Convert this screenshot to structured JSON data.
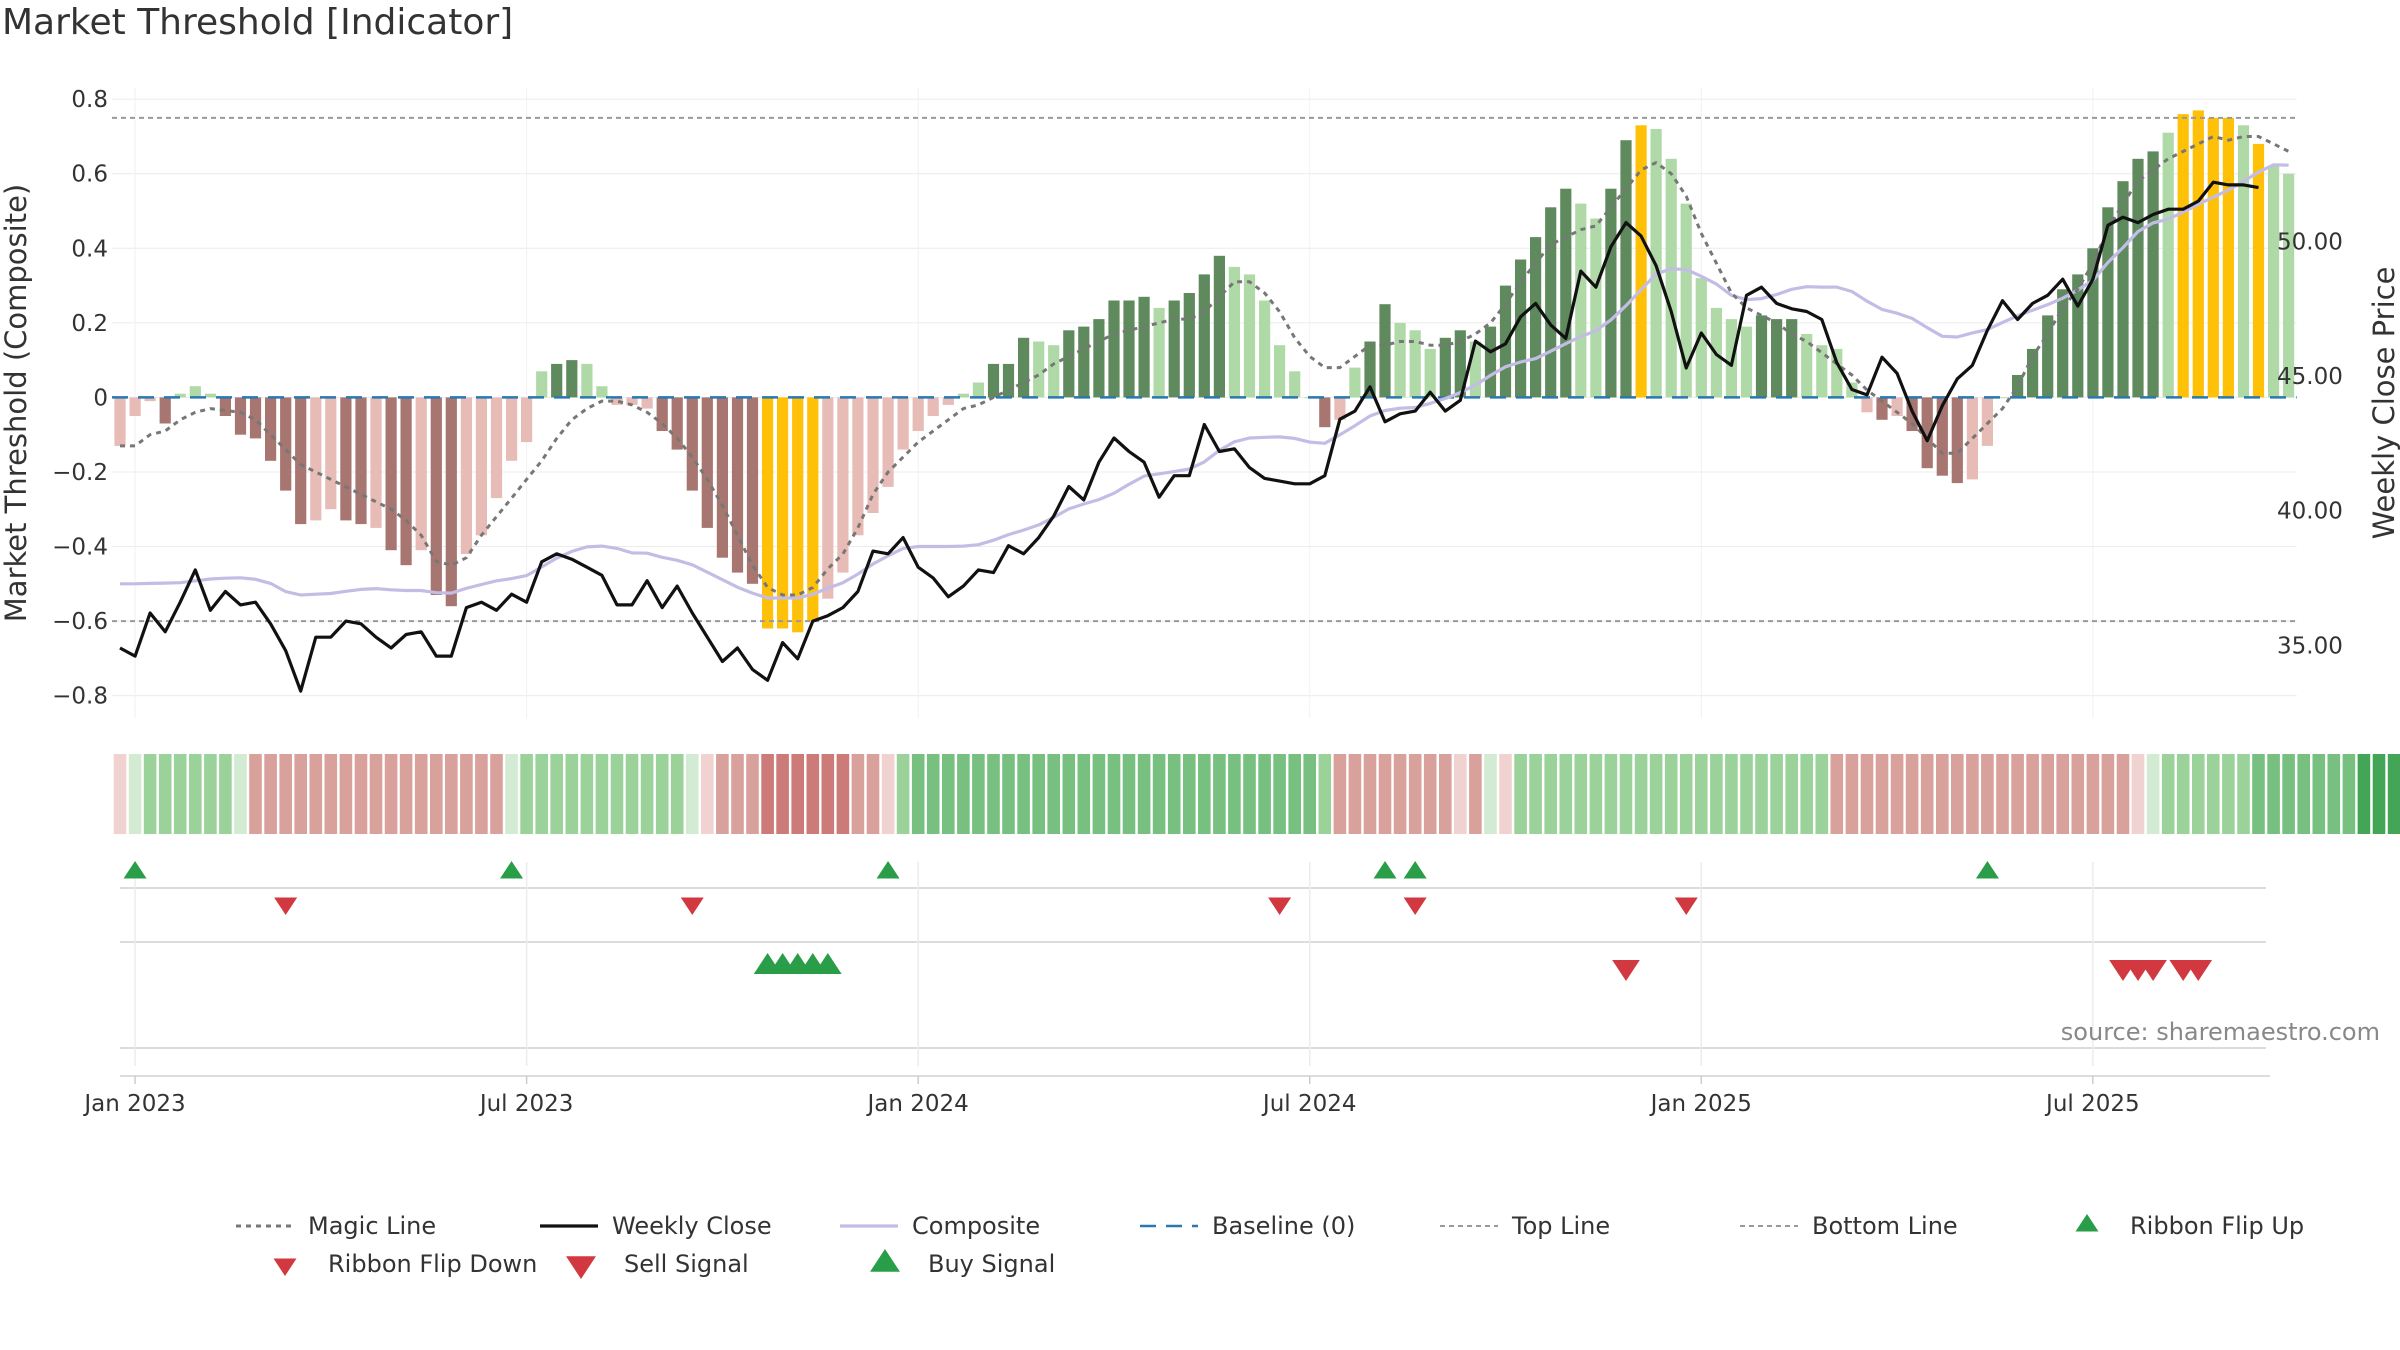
{
  "title": "Market Threshold [Indicator]",
  "source": "source: sharemaestro.com",
  "chart_data": {
    "type": "bar",
    "y_left_label": "Market Threshold (Composite)",
    "y_right_label": "Weekly Close Price",
    "y_left_ticks": [
      {
        "v": 0.8,
        "label": "0.8"
      },
      {
        "v": 0.6,
        "label": "0.6"
      },
      {
        "v": 0.4,
        "label": "0.4"
      },
      {
        "v": 0.2,
        "label": "0.2"
      },
      {
        "v": 0,
        "label": "0"
      },
      {
        "v": -0.2,
        "label": "−0.2"
      },
      {
        "v": -0.4,
        "label": "−0.4"
      },
      {
        "v": -0.6,
        "label": "−0.6"
      },
      {
        "v": -0.8,
        "label": "−0.8"
      }
    ],
    "y_left_range": [
      -0.86,
      0.83
    ],
    "y_right_ticks": [
      {
        "v": 50,
        "label": "50.00"
      },
      {
        "v": 45,
        "label": "45.00"
      },
      {
        "v": 40,
        "label": "40.00"
      },
      {
        "v": 35,
        "label": "35.00"
      }
    ],
    "y_right_range": [
      32.3,
      55.7
    ],
    "x_ticks": [
      {
        "label": "Jan 2023",
        "week": 1
      },
      {
        "label": "Jul 2023",
        "week": 27
      },
      {
        "label": "Jan 2024",
        "week": 53
      },
      {
        "label": "Jul 2024",
        "week": 79
      },
      {
        "label": "Jan 2025",
        "week": 105
      },
      {
        "label": "Jul 2025",
        "week": 131
      }
    ],
    "week_count": 145,
    "top_line": 0.75,
    "bottom_line": -0.6,
    "baseline": 0,
    "colors": {
      "bull_strong": "#5e8a5e",
      "bull_light": "#b0d9a8",
      "bear_strong": "#a87670",
      "bear_light": "#e8bcb6",
      "extreme": "#ffc107",
      "weekly_close": "#111111",
      "composite": "#c3bde6",
      "magic": "#777777",
      "baseline": "#2a78b0",
      "threshold": "#999999",
      "signal_up": "#2a9d48",
      "signal_down": "#d2383f"
    },
    "bar_values": [
      -0.13,
      -0.05,
      -0.01,
      -0.07,
      0.01,
      0.03,
      0.01,
      -0.05,
      -0.1,
      -0.11,
      -0.17,
      -0.25,
      -0.34,
      -0.33,
      -0.3,
      -0.33,
      -0.34,
      -0.35,
      -0.41,
      -0.45,
      -0.41,
      -0.53,
      -0.56,
      -0.42,
      -0.37,
      -0.27,
      -0.17,
      -0.12,
      0.07,
      0.09,
      0.1,
      0.09,
      0.03,
      -0.02,
      -0.02,
      -0.03,
      -0.09,
      -0.14,
      -0.25,
      -0.35,
      -0.43,
      -0.47,
      -0.5,
      -0.62,
      -0.62,
      -0.63,
      -0.6,
      -0.54,
      -0.47,
      -0.37,
      -0.31,
      -0.24,
      -0.14,
      -0.09,
      -0.05,
      -0.02,
      0.01,
      0.04,
      0.09,
      0.09,
      0.16,
      0.15,
      0.14,
      0.18,
      0.19,
      0.21,
      0.26,
      0.26,
      0.27,
      0.24,
      0.26,
      0.28,
      0.33,
      0.38,
      0.35,
      0.33,
      0.26,
      0.14,
      0.07,
      0,
      -0.08,
      -0.06,
      0.08,
      0.15,
      0.25,
      0.2,
      0.18,
      0.13,
      0.16,
      0.18,
      0.15,
      0.19,
      0.3,
      0.37,
      0.43,
      0.51,
      0.56,
      0.52,
      0.48,
      0.56,
      0.69,
      0.73,
      0.72,
      0.64,
      0.52,
      0.32,
      0.24,
      0.21,
      0.19,
      0.22,
      0.21,
      0.21,
      0.17,
      0.14,
      0.13,
      0.04,
      -0.04,
      -0.06,
      -0.05,
      -0.09,
      -0.19,
      -0.21,
      -0.23,
      -0.22,
      -0.13,
      0,
      0.06,
      0.13,
      0.22,
      0.29,
      0.33,
      0.4,
      0.51,
      0.58,
      0.64,
      0.66,
      0.71,
      0.76,
      0.77,
      0.75,
      0.75,
      0.73,
      0.68,
      0.62,
      0.6
    ],
    "bar_kinds": [
      "BL",
      "BL",
      "BL",
      "BS",
      "GL",
      "GL",
      "GL",
      "BS",
      "BS",
      "BS",
      "BS",
      "BS",
      "BS",
      "BL",
      "BL",
      "BS",
      "BS",
      "BL",
      "BS",
      "BS",
      "BL",
      "BS",
      "BS",
      "BL",
      "BL",
      "BL",
      "BL",
      "BL",
      "GL",
      "GS",
      "GS",
      "GL",
      "GL",
      "BL",
      "BL",
      "BL",
      "BS",
      "BS",
      "BS",
      "BS",
      "BS",
      "BS",
      "BS",
      "Y",
      "Y",
      "Y",
      "Y",
      "BL",
      "BL",
      "BL",
      "BL",
      "BL",
      "BL",
      "BL",
      "BL",
      "BL",
      "GL",
      "GL",
      "GS",
      "GS",
      "GS",
      "GL",
      "GL",
      "GS",
      "GS",
      "GS",
      "GS",
      "GS",
      "GS",
      "GL",
      "GS",
      "GS",
      "GS",
      "GS",
      "GL",
      "GL",
      "GL",
      "GL",
      "GL",
      "GL",
      "BS",
      "BL",
      "GL",
      "GS",
      "GS",
      "GL",
      "GL",
      "GL",
      "GS",
      "GS",
      "GL",
      "GS",
      "GS",
      "GS",
      "GS",
      "GS",
      "GS",
      "GL",
      "GL",
      "GS",
      "GS",
      "Y",
      "GL",
      "GL",
      "GL",
      "GL",
      "GL",
      "GL",
      "GL",
      "GS",
      "GS",
      "GS",
      "GL",
      "GL",
      "GL",
      "GL",
      "BL",
      "BS",
      "BL",
      "BS",
      "BS",
      "BS",
      "BS",
      "BL",
      "BL",
      "GL",
      "GS",
      "GS",
      "GS",
      "GS",
      "GS",
      "GS",
      "GS",
      "GS",
      "GS",
      "GS",
      "GL",
      "Y",
      "Y",
      "Y",
      "Y",
      "GL",
      "Y",
      "GL",
      "GL",
      "GL"
    ],
    "weekly_close": [
      34.9,
      34.6,
      36.2,
      35.5,
      36.6,
      37.8,
      36.3,
      37,
      36.5,
      36.6,
      35.8,
      34.8,
      33.3,
      35.3,
      35.3,
      35.9,
      35.8,
      35.3,
      34.9,
      35.4,
      35.5,
      34.6,
      34.6,
      36.4,
      36.6,
      36.3,
      36.9,
      36.6,
      38.1,
      38.4,
      38.2,
      37.9,
      37.6,
      36.5,
      36.5,
      37.4,
      36.4,
      37.2,
      36.2,
      35.3,
      34.4,
      34.9,
      34.1,
      33.7,
      35.1,
      34.5,
      35.9,
      36.1,
      36.4,
      37,
      38.5,
      38.4,
      39,
      37.9,
      37.5,
      36.8,
      37.2,
      37.8,
      37.7,
      38.7,
      38.4,
      39,
      39.8,
      40.9,
      40.4,
      41.8,
      42.7,
      42.2,
      41.8,
      40.5,
      41.3,
      41.3,
      43.2,
      42.2,
      42.3,
      41.6,
      41.2,
      41.1,
      41,
      41,
      41.3,
      43.4,
      43.7,
      44.6,
      43.3,
      43.6,
      43.7,
      44.4,
      43.7,
      44.1,
      46.3,
      45.9,
      46.2,
      47.2,
      47.7,
      46.9,
      46.4,
      48.9,
      48.3,
      49.8,
      50.7,
      50.2,
      49.1,
      47.4,
      45.3,
      46.6,
      45.8,
      45.4,
      48,
      48.3,
      47.7,
      47.5,
      47.4,
      47.1,
      45.5,
      44.5,
      44.3,
      45.7,
      45.1,
      43.7,
      42.6,
      43.9,
      44.9,
      45.4,
      46.7,
      47.8,
      47.1,
      47.7,
      48,
      48.6,
      47.6,
      48.6,
      50.6,
      50.9,
      50.7,
      51,
      51.2,
      51.2,
      51.5,
      52.2,
      52.1,
      52.1,
      52
    ],
    "composite": [
      -0.5,
      -0.5,
      -0.499,
      -0.498,
      -0.497,
      -0.492,
      -0.487,
      -0.485,
      -0.484,
      -0.488,
      -0.499,
      -0.521,
      -0.53,
      -0.528,
      -0.526,
      -0.52,
      -0.515,
      -0.513,
      -0.516,
      -0.518,
      -0.518,
      -0.524,
      -0.525,
      -0.512,
      -0.502,
      -0.492,
      -0.486,
      -0.478,
      -0.455,
      -0.431,
      -0.413,
      -0.401,
      -0.399,
      -0.405,
      -0.417,
      -0.418,
      -0.429,
      -0.437,
      -0.449,
      -0.469,
      -0.489,
      -0.509,
      -0.525,
      -0.538,
      -0.538,
      -0.538,
      -0.528,
      -0.512,
      -0.497,
      -0.474,
      -0.447,
      -0.425,
      -0.405,
      -0.4,
      -0.4,
      -0.4,
      -0.399,
      -0.395,
      -0.383,
      -0.368,
      -0.356,
      -0.342,
      -0.322,
      -0.299,
      -0.286,
      -0.274,
      -0.257,
      -0.233,
      -0.211,
      -0.205,
      -0.199,
      -0.192,
      -0.173,
      -0.142,
      -0.119,
      -0.109,
      -0.107,
      -0.106,
      -0.11,
      -0.12,
      -0.123,
      -0.1,
      -0.076,
      -0.05,
      -0.035,
      -0.029,
      -0.027,
      -0.016,
      -0.003,
      0.013,
      0.033,
      0.059,
      0.082,
      0.095,
      0.104,
      0.124,
      0.144,
      0.163,
      0.179,
      0.208,
      0.246,
      0.289,
      0.331,
      0.345,
      0.343,
      0.325,
      0.304,
      0.274,
      0.262,
      0.265,
      0.276,
      0.29,
      0.297,
      0.296,
      0.296,
      0.284,
      0.258,
      0.236,
      0.226,
      0.212,
      0.187,
      0.164,
      0.162,
      0.173,
      0.182,
      0.201,
      0.219,
      0.234,
      0.249,
      0.266,
      0.288,
      0.314,
      0.362,
      0.402,
      0.445,
      0.468,
      0.478,
      0.497,
      0.518,
      0.537,
      0.556,
      0.58,
      0.604,
      0.624,
      0.623
    ],
    "magic_line": [
      -0.13,
      -0.13,
      -0.1,
      -0.09,
      -0.06,
      -0.04,
      -0.03,
      -0.035,
      -0.04,
      -0.06,
      -0.1,
      -0.14,
      -0.18,
      -0.2,
      -0.22,
      -0.24,
      -0.26,
      -0.28,
      -0.3,
      -0.33,
      -0.37,
      -0.44,
      -0.45,
      -0.43,
      -0.37,
      -0.32,
      -0.27,
      -0.22,
      -0.17,
      -0.11,
      -0.06,
      -0.03,
      -0.01,
      -0.01,
      -0.02,
      -0.04,
      -0.07,
      -0.11,
      -0.16,
      -0.22,
      -0.29,
      -0.37,
      -0.45,
      -0.51,
      -0.53,
      -0.53,
      -0.51,
      -0.46,
      -0.42,
      -0.35,
      -0.26,
      -0.2,
      -0.16,
      -0.12,
      -0.09,
      -0.06,
      -0.03,
      -0.02,
      0,
      0.02,
      0.04,
      0.06,
      0.09,
      0.11,
      0.13,
      0.15,
      0.17,
      0.18,
      0.19,
      0.2,
      0.21,
      0.21,
      0.23,
      0.27,
      0.31,
      0.31,
      0.28,
      0.23,
      0.16,
      0.11,
      0.08,
      0.08,
      0.11,
      0.14,
      0.14,
      0.15,
      0.15,
      0.14,
      0.14,
      0.15,
      0.17,
      0.2,
      0.25,
      0.31,
      0.36,
      0.41,
      0.43,
      0.45,
      0.46,
      0.51,
      0.56,
      0.61,
      0.63,
      0.6,
      0.54,
      0.44,
      0.36,
      0.28,
      0.24,
      0.22,
      0.2,
      0.17,
      0.15,
      0.12,
      0.09,
      0.06,
      0.02,
      -0.01,
      -0.04,
      -0.07,
      -0.11,
      -0.15,
      -0.15,
      -0.11,
      -0.07,
      -0.03,
      0.03,
      0.11,
      0.17,
      0.24,
      0.29,
      0.36,
      0.45,
      0.52,
      0.58,
      0.61,
      0.64,
      0.66,
      0.68,
      0.7,
      0.69,
      0.7,
      0.7,
      0.68,
      0.66
    ],
    "ribbon_levels": [
      -1,
      1,
      2,
      2,
      2,
      2,
      2,
      2,
      1,
      -2,
      -2,
      -2,
      -2,
      -2,
      -2,
      -2,
      -2,
      -2,
      -2,
      -2,
      -2,
      -2,
      -2,
      -2,
      -2,
      -2,
      1,
      2,
      2,
      2,
      2,
      2,
      2,
      2,
      2,
      2,
      2,
      2,
      1,
      -1,
      -2,
      -2,
      -2,
      -3,
      -3,
      -3,
      -3,
      -3,
      -3,
      -2,
      -2,
      -1,
      2,
      3,
      3,
      3,
      3,
      3,
      3,
      3,
      3,
      3,
      3,
      3,
      3,
      3,
      3,
      3,
      3,
      3,
      3,
      3,
      3,
      3,
      3,
      3,
      3,
      3,
      3,
      3,
      2,
      -2,
      -2,
      -2,
      -2,
      -2,
      -2,
      -2,
      -2,
      -1,
      -2,
      1,
      -1,
      2,
      2,
      2,
      2,
      2,
      2,
      2,
      2,
      2,
      2,
      2,
      2,
      2,
      2,
      2,
      2,
      2,
      2,
      2,
      2,
      2,
      -2,
      -2,
      -2,
      -2,
      -2,
      -2,
      -2,
      -2,
      -2,
      -2,
      -2,
      -2,
      -2,
      -2,
      -2,
      -2,
      -2,
      -2,
      -2,
      -2,
      -1,
      1,
      2,
      2,
      2,
      2,
      2,
      2,
      3,
      3,
      3,
      3,
      3,
      3,
      3,
      4,
      4,
      4,
      4,
      4,
      4,
      4,
      3,
      3,
      3,
      3,
      3,
      2
    ],
    "ribbon_flip_up_weeks": [
      1,
      26,
      51,
      84,
      86,
      124
    ],
    "ribbon_flip_down_weeks": [
      11,
      38,
      77,
      86,
      104
    ],
    "buy_signal_weeks": [
      43,
      44,
      45,
      46,
      47
    ],
    "sell_signal_weeks": [
      100,
      133,
      134,
      135,
      137,
      138
    ],
    "legend": [
      {
        "key": "magic",
        "label": "Magic Line"
      },
      {
        "key": "close",
        "label": "Weekly Close"
      },
      {
        "key": "composite",
        "label": "Composite"
      },
      {
        "key": "baseline",
        "label": "Baseline (0)"
      },
      {
        "key": "top",
        "label": "Top Line"
      },
      {
        "key": "bottom",
        "label": "Bottom Line"
      },
      {
        "key": "flipup",
        "label": "Ribbon Flip Up"
      },
      {
        "key": "flipdown",
        "label": "Ribbon Flip Down"
      },
      {
        "key": "sell",
        "label": "Sell Signal"
      },
      {
        "key": "buy",
        "label": "Buy Signal"
      }
    ]
  }
}
